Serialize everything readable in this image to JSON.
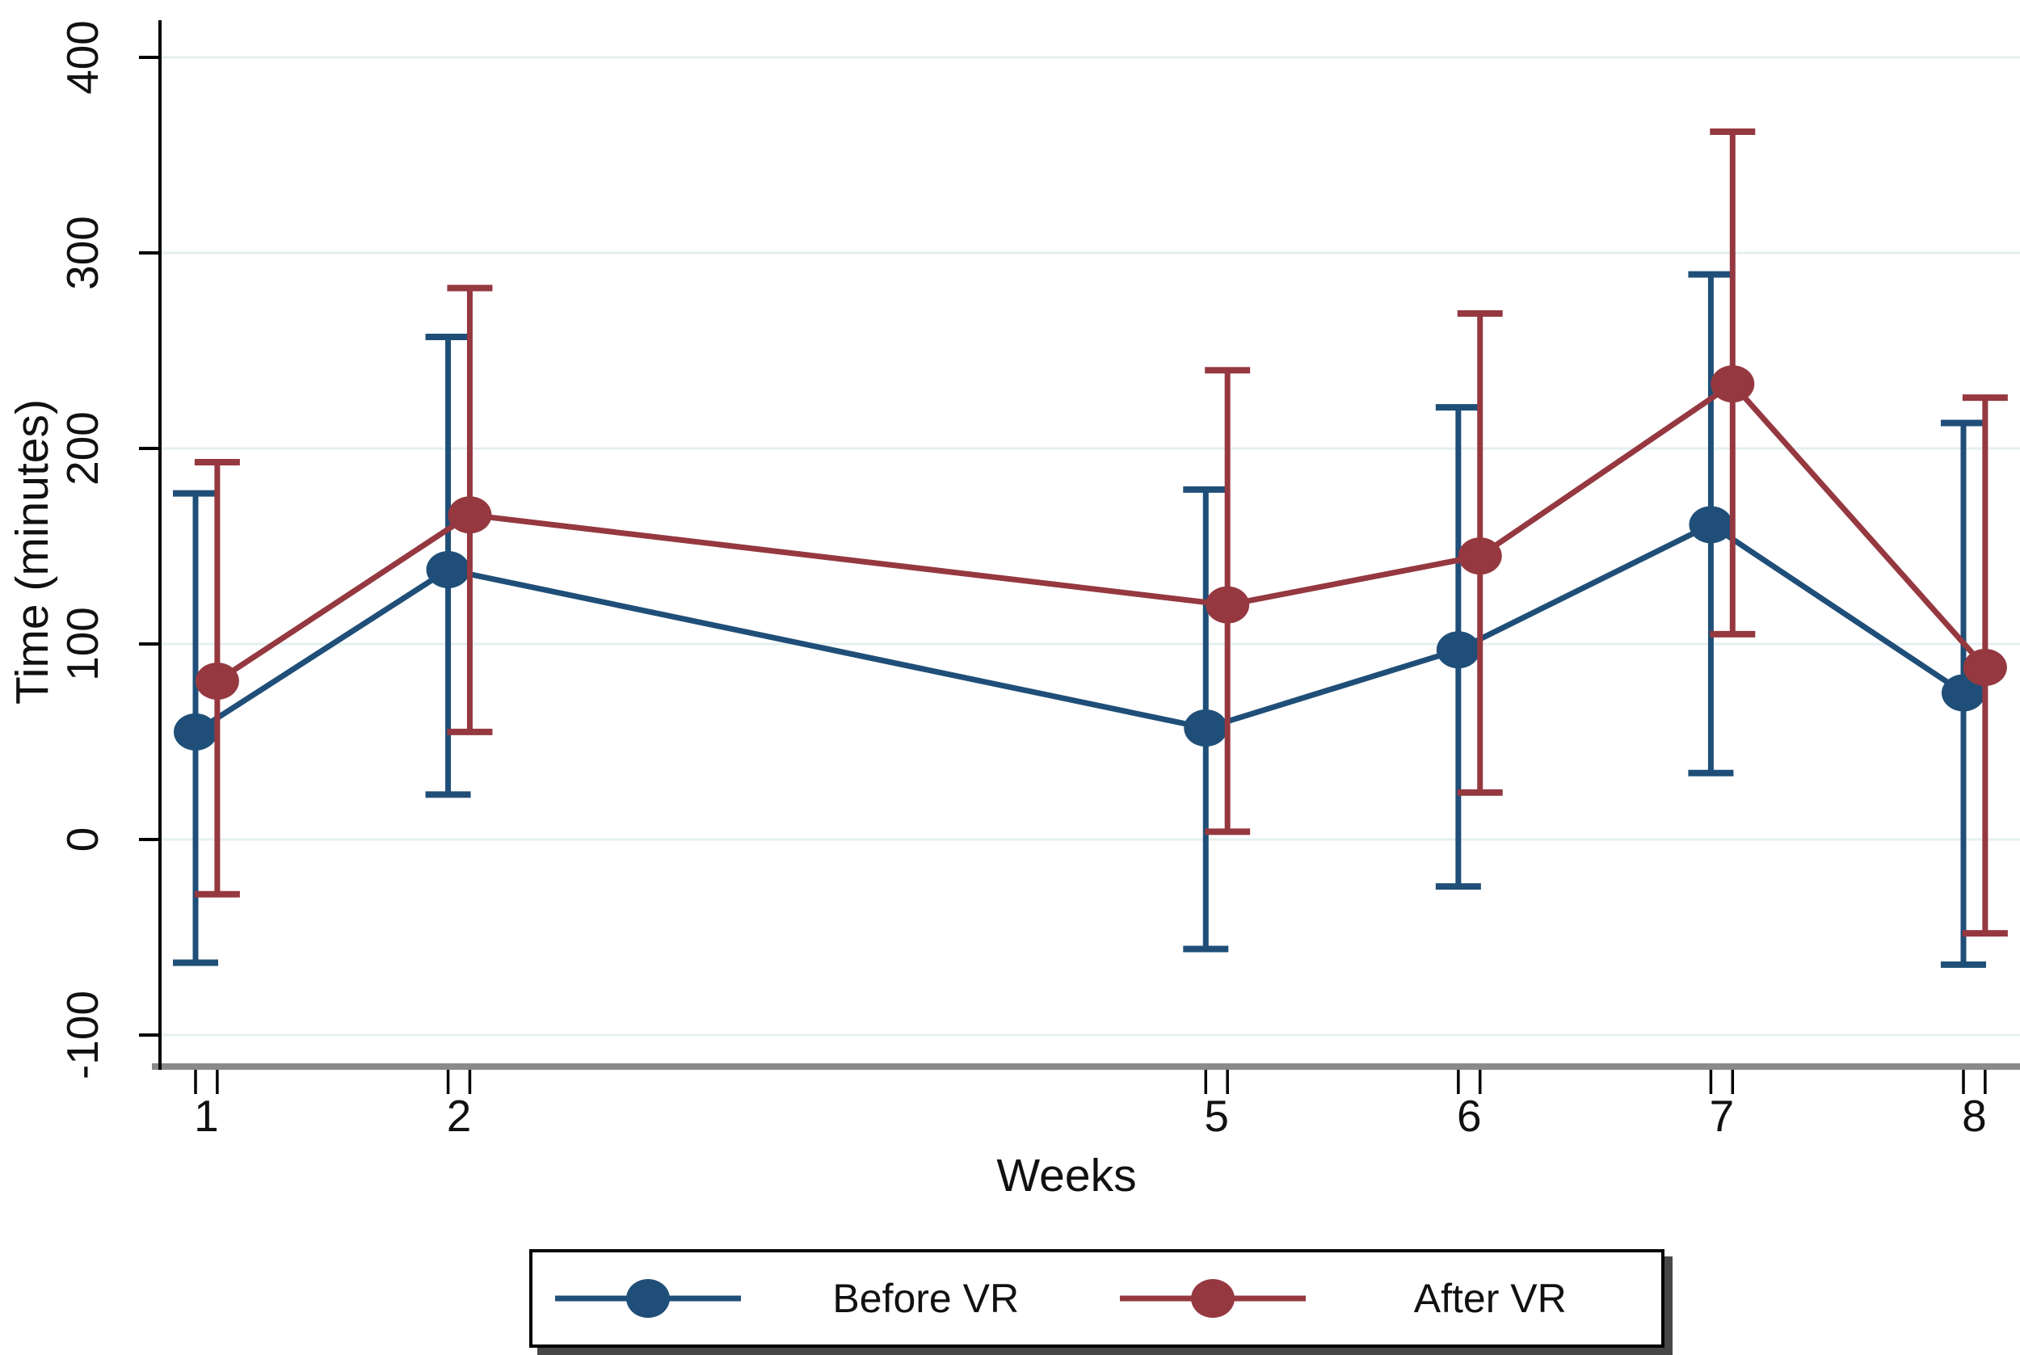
{
  "chart_data": {
    "type": "line",
    "title": "",
    "xlabel": "Weeks",
    "ylabel": "Time (minutes)",
    "grid": true,
    "legend_position": "bottom",
    "ylim": [
      -116,
      419
    ],
    "xlim": [
      0.86,
      8.22
    ],
    "y_ticks": [
      {
        "value": 400,
        "label": "400"
      },
      {
        "value": 300,
        "label": "300"
      },
      {
        "value": 200,
        "label": "200"
      },
      {
        "value": 100,
        "label": "100"
      },
      {
        "value": 0,
        "label": "0"
      },
      {
        "value": -100,
        "label": "-100"
      }
    ],
    "x_ticks": [
      {
        "value": 1,
        "label": "1"
      },
      {
        "value": 2,
        "label": "2"
      },
      {
        "value": 5,
        "label": "5"
      },
      {
        "value": 6,
        "label": "6"
      },
      {
        "value": 7,
        "label": "7"
      },
      {
        "value": 8,
        "label": "8"
      }
    ],
    "series": [
      {
        "name": "Before VR",
        "color": "#1F4F78",
        "x_offset_weeks": 0,
        "points": [
          {
            "x": 1,
            "y": 55,
            "ci_low": -63,
            "ci_high": 177
          },
          {
            "x": 2,
            "y": 138,
            "ci_low": 23,
            "ci_high": 257
          },
          {
            "x": 5,
            "y": 57,
            "ci_low": -56,
            "ci_high": 179
          },
          {
            "x": 6,
            "y": 97,
            "ci_low": -24,
            "ci_high": 221
          },
          {
            "x": 7,
            "y": 161,
            "ci_low": 34,
            "ci_high": 289
          },
          {
            "x": 8,
            "y": 75,
            "ci_low": -64,
            "ci_high": 213
          }
        ]
      },
      {
        "name": "After VR",
        "color": "#953840",
        "x_offset_weeks": 0.086,
        "points": [
          {
            "x": 1,
            "y": 81,
            "ci_low": -28,
            "ci_high": 193
          },
          {
            "x": 2,
            "y": 166,
            "ci_low": 55,
            "ci_high": 282
          },
          {
            "x": 5,
            "y": 120,
            "ci_low": 4,
            "ci_high": 240
          },
          {
            "x": 6,
            "y": 145,
            "ci_low": 24,
            "ci_high": 269
          },
          {
            "x": 7,
            "y": 233,
            "ci_low": 105,
            "ci_high": 362
          },
          {
            "x": 8,
            "y": 88,
            "ci_low": -48,
            "ci_high": 226
          }
        ]
      }
    ],
    "colors": {
      "gridline": "#E4EFEF",
      "axis_line": "#000000",
      "baseline_gray": "#8A8A8A",
      "text": "#111111",
      "background": "#FFFFFF"
    }
  }
}
